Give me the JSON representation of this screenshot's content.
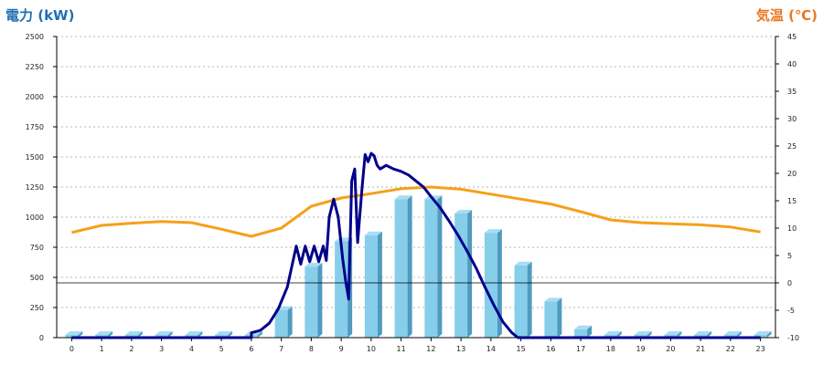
{
  "chart_data": {
    "type": "bar+line",
    "colors": {
      "bar_face": "#87ceeb",
      "bar_side": "#4f9bbf",
      "bar_top": "#a9dcf2",
      "power_line": "#00008b",
      "temp_line": "#f5a01a",
      "left_title": "#1f6fb5",
      "right_title": "#e87722",
      "grid": "#b5b5b5"
    },
    "left_axis": {
      "title": "電力 (kW)",
      "min": 0,
      "max": 2500,
      "ticks": [
        0,
        250,
        500,
        750,
        1000,
        1250,
        1500,
        1750,
        2000,
        2250,
        2500
      ]
    },
    "right_axis": {
      "title": "気温 (℃)",
      "min": -10,
      "max": 45,
      "ticks": [
        -10,
        -5,
        0,
        5,
        10,
        15,
        20,
        25,
        30,
        35,
        40,
        45
      ]
    },
    "categories": [
      "0",
      "1",
      "2",
      "3",
      "4",
      "5",
      "6",
      "7",
      "8",
      "9",
      "10",
      "11",
      "12",
      "13",
      "14",
      "15",
      "16",
      "17",
      "18",
      "19",
      "20",
      "21",
      "22",
      "23"
    ],
    "bars": {
      "axis": "left",
      "values": [
        0,
        0,
        0,
        0,
        0,
        0,
        0,
        230,
        590,
        800,
        850,
        1150,
        1150,
        1030,
        870,
        600,
        300,
        70,
        0,
        0,
        0,
        0,
        0,
        0
      ]
    },
    "power_line": {
      "axis": "left",
      "points": [
        [
          0,
          0
        ],
        [
          6,
          0
        ],
        [
          6.0,
          40
        ],
        [
          6.3,
          60
        ],
        [
          6.6,
          120
        ],
        [
          6.9,
          240
        ],
        [
          7.2,
          420
        ],
        [
          7.5,
          760
        ],
        [
          7.65,
          610
        ],
        [
          7.8,
          760
        ],
        [
          7.95,
          630
        ],
        [
          8.1,
          760
        ],
        [
          8.25,
          630
        ],
        [
          8.4,
          760
        ],
        [
          8.5,
          640
        ],
        [
          8.6,
          1000
        ],
        [
          8.75,
          1150
        ],
        [
          8.9,
          1000
        ],
        [
          9.05,
          650
        ],
        [
          9.15,
          470
        ],
        [
          9.25,
          320
        ],
        [
          9.35,
          1300
        ],
        [
          9.45,
          1400
        ],
        [
          9.55,
          790
        ],
        [
          9.7,
          1250
        ],
        [
          9.8,
          1520
        ],
        [
          9.9,
          1460
        ],
        [
          10.0,
          1530
        ],
        [
          10.1,
          1510
        ],
        [
          10.2,
          1430
        ],
        [
          10.3,
          1400
        ],
        [
          10.5,
          1430
        ],
        [
          10.75,
          1400
        ],
        [
          11,
          1380
        ],
        [
          11.25,
          1350
        ],
        [
          11.5,
          1300
        ],
        [
          11.75,
          1250
        ],
        [
          12,
          1170
        ],
        [
          12.3,
          1080
        ],
        [
          12.6,
          970
        ],
        [
          12.9,
          850
        ],
        [
          13.2,
          720
        ],
        [
          13.5,
          580
        ],
        [
          13.8,
          420
        ],
        [
          14.1,
          270
        ],
        [
          14.4,
          130
        ],
        [
          14.7,
          40
        ],
        [
          14.9,
          0
        ],
        [
          23,
          0
        ]
      ]
    },
    "temperature_line": {
      "axis": "right",
      "points": [
        [
          0,
          9.2
        ],
        [
          1,
          10.5
        ],
        [
          2,
          10.9
        ],
        [
          3,
          11.2
        ],
        [
          4,
          11.0
        ],
        [
          5,
          9.8
        ],
        [
          6,
          8.5
        ],
        [
          7,
          10.0
        ],
        [
          8,
          14.0
        ],
        [
          9,
          15.5
        ],
        [
          10,
          16.3
        ],
        [
          11,
          17.2
        ],
        [
          12,
          17.5
        ],
        [
          13,
          17.1
        ],
        [
          14,
          16.2
        ],
        [
          15,
          15.3
        ],
        [
          16,
          14.4
        ],
        [
          17,
          13.0
        ],
        [
          18,
          11.5
        ],
        [
          19,
          11.0
        ],
        [
          20,
          10.8
        ],
        [
          21,
          10.6
        ],
        [
          22,
          10.2
        ],
        [
          23,
          9.3
        ]
      ]
    },
    "grid": "horizontal dotted",
    "legend": "none"
  }
}
